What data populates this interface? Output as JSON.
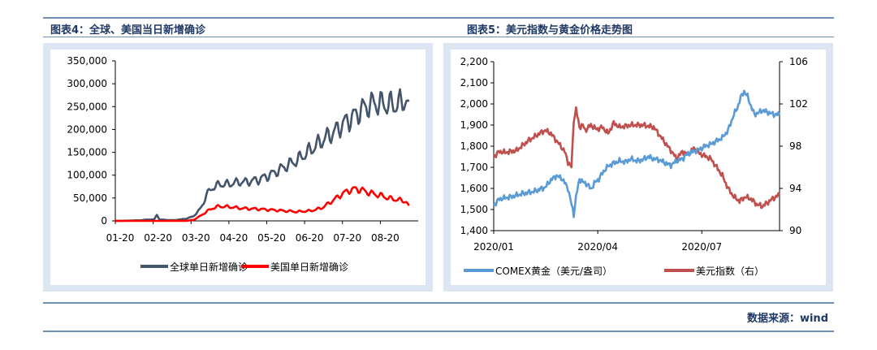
{
  "source_label": "数据来源：wind",
  "chart_data": [
    {
      "type": "line",
      "title": "图表4：全球、美国当日新增确诊",
      "x_tick_labels": [
        "01-20",
        "02-20",
        "03-20",
        "04-20",
        "05-20",
        "06-20",
        "07-20",
        "08-20"
      ],
      "y_tick_labels": [
        "0",
        "50,000",
        "100,000",
        "150,000",
        "200,000",
        "250,000",
        "300,000",
        "350,000"
      ],
      "ylim": [
        0,
        350000
      ],
      "x_unit": "days since 2020-01-01 (01-20 = 0, 08-20 = 213)",
      "xlim": [
        0,
        233
      ],
      "grid": false,
      "legend_position": "bottom",
      "series": [
        {
          "name": "全球单日新增确诊",
          "color": "#44546a",
          "weekly_oscillation": true,
          "x": [
            0,
            10,
            20,
            25,
            30,
            32,
            34,
            40,
            45,
            50,
            55,
            60,
            65,
            68,
            70,
            75,
            80,
            85,
            90,
            95,
            100,
            110,
            120,
            130,
            140,
            150,
            160,
            165,
            170,
            175,
            180,
            185,
            190,
            195,
            200,
            205,
            210,
            213,
            216,
            220,
            224,
            226
          ],
          "y": [
            0,
            500,
            1500,
            3000,
            3000,
            14000,
            3000,
            2000,
            1500,
            3000,
            5000,
            10000,
            25000,
            40000,
            58000,
            73000,
            80000,
            80000,
            82000,
            85000,
            85000,
            90000,
            102000,
            118000,
            133000,
            155000,
            178000,
            188000,
            198000,
            212000,
            222000,
            232000,
            245000,
            253000,
            258000,
            256000,
            255000,
            254000,
            255000,
            258000,
            268000,
            235000
          ]
        },
        {
          "name": "美国单日新增确诊",
          "color": "#ff0000",
          "weekly_oscillation": true,
          "x": [
            0,
            30,
            55,
            60,
            65,
            70,
            75,
            80,
            85,
            90,
            95,
            100,
            110,
            120,
            130,
            140,
            150,
            155,
            160,
            165,
            170,
            175,
            180,
            185,
            190,
            195,
            200,
            205,
            210,
            215,
            220,
            224,
            226
          ],
          "y": [
            0,
            0,
            200,
            2000,
            10000,
            20000,
            28000,
            32000,
            31000,
            30000,
            28000,
            27000,
            26000,
            24000,
            22000,
            20000,
            22000,
            25000,
            30000,
            40000,
            50000,
            60000,
            67000,
            70000,
            67000,
            62000,
            58000,
            55000,
            50000,
            47000,
            45000,
            42000,
            30000
          ]
        }
      ]
    },
    {
      "type": "line",
      "title": "图表5：美元指数与黄金价格走势图",
      "x_tick_labels": [
        "2020/01",
        "2020/04",
        "2020/07"
      ],
      "y_tick_labels": [
        "1,400",
        "1,500",
        "1,600",
        "1,700",
        "1,800",
        "1,900",
        "2,000",
        "2,100",
        "2,200"
      ],
      "ylim": [
        1400,
        2200
      ],
      "y2_tick_labels": [
        "90",
        "94",
        "98",
        "102",
        "106"
      ],
      "y2lim": [
        90,
        106
      ],
      "x_unit": "days since 2020-01-01 (2020/01 = 0, 2020/04 = 91, 2020/07 = 182)",
      "xlim": [
        0,
        250
      ],
      "grid": false,
      "legend_position": "bottom",
      "series": [
        {
          "name": "COMEX黄金（美元/盎司）",
          "color": "#5b9bd5",
          "axis": "left",
          "x": [
            0,
            5,
            15,
            25,
            35,
            45,
            50,
            55,
            60,
            65,
            68,
            70,
            72,
            75,
            78,
            82,
            85,
            88,
            92,
            96,
            100,
            105,
            110,
            115,
            120,
            125,
            130,
            135,
            140,
            145,
            150,
            155,
            160,
            165,
            170,
            175,
            180,
            185,
            190,
            195,
            200,
            205,
            210,
            213,
            216,
            219,
            222,
            225,
            228,
            232,
            235,
            240,
            245,
            250
          ],
          "y": [
            1520,
            1550,
            1560,
            1575,
            1585,
            1605,
            1640,
            1660,
            1645,
            1600,
            1525,
            1475,
            1560,
            1645,
            1630,
            1620,
            1595,
            1625,
            1645,
            1680,
            1705,
            1720,
            1730,
            1725,
            1740,
            1730,
            1735,
            1750,
            1740,
            1735,
            1720,
            1710,
            1730,
            1740,
            1765,
            1775,
            1785,
            1800,
            1810,
            1825,
            1840,
            1875,
            1950,
            1980,
            2030,
            2060,
            2035,
            1990,
            1950,
            1960,
            1970,
            1960,
            1950,
            1950
          ]
        },
        {
          "name": "美元指数（右）",
          "color": "#c0504d",
          "axis": "right",
          "x": [
            0,
            5,
            10,
            20,
            30,
            40,
            45,
            50,
            55,
            60,
            62,
            65,
            68,
            70,
            72,
            75,
            78,
            80,
            85,
            90,
            95,
            100,
            105,
            110,
            120,
            130,
            140,
            150,
            155,
            160,
            165,
            170,
            175,
            180,
            190,
            195,
            200,
            205,
            210,
            215,
            220,
            225,
            230,
            235,
            240,
            245,
            250
          ],
          "y": [
            97,
            97.5,
            97.4,
            97.6,
            98.5,
            99.2,
            99.5,
            99.2,
            98.5,
            97.8,
            97.5,
            96.5,
            96,
            100.5,
            101.5,
            99.8,
            100,
            99.5,
            100,
            99.6,
            99.8,
            99.2,
            100.2,
            99.8,
            100,
            100,
            99.8,
            98.3,
            97.6,
            96.8,
            97.5,
            97.2,
            97.8,
            97.3,
            96.8,
            96,
            95.2,
            94,
            93.2,
            92.8,
            93.2,
            93,
            92.5,
            92.3,
            92.7,
            93.1,
            93.4
          ]
        }
      ]
    }
  ]
}
